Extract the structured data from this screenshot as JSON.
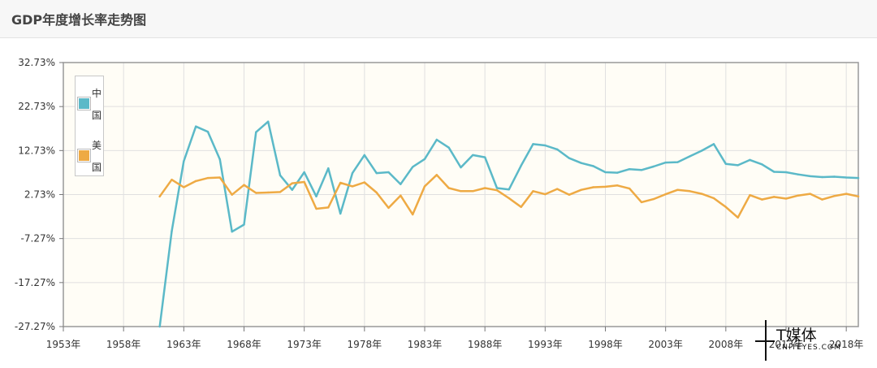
{
  "header": {
    "title": "GDP年度增长率走势图"
  },
  "watermark": {
    "brand": "T媒体",
    "sub": "CNITEYES.COM",
    "tm": "TM"
  },
  "colors": {
    "china": "#5bb9c8",
    "usa": "#eeaa44",
    "plot_bg": "#fffdf6",
    "grid": "#e0e0e0",
    "frame": "#999999"
  },
  "chart_data": {
    "type": "line",
    "title": "GDP年度增长率走势图",
    "ylim": [
      -27.27,
      32.73
    ],
    "xlim": [
      1953,
      2019
    ],
    "yticks": [
      -27.27,
      -17.27,
      -7.27,
      2.73,
      12.73,
      22.73,
      32.73
    ],
    "ytick_labels": [
      "-27.27%",
      "-17.27%",
      "-7.27%",
      "2.73%",
      "12.73%",
      "22.73%",
      "32.73%"
    ],
    "xticks": [
      1953,
      1958,
      1963,
      1968,
      1973,
      1978,
      1983,
      1988,
      1993,
      1998,
      2003,
      2008,
      2013,
      2018
    ],
    "xtick_labels": [
      "1953年",
      "1958年",
      "1963年",
      "1968年",
      "1973年",
      "1978年",
      "1983年",
      "1988年",
      "1993年",
      "1998年",
      "2003年",
      "2008年",
      "2013年",
      "2018年"
    ],
    "grid": true,
    "legend_position": "top-left",
    "series": [
      {
        "name": "中国",
        "color": "#5bb9c8",
        "x": [
          1961,
          1962,
          1963,
          1964,
          1965,
          1966,
          1967,
          1968,
          1969,
          1970,
          1971,
          1972,
          1973,
          1974,
          1975,
          1976,
          1977,
          1978,
          1979,
          1980,
          1981,
          1982,
          1983,
          1984,
          1985,
          1986,
          1987,
          1988,
          1989,
          1990,
          1991,
          1992,
          1993,
          1994,
          1995,
          1996,
          1997,
          1998,
          1999,
          2000,
          2001,
          2002,
          2003,
          2004,
          2005,
          2006,
          2007,
          2008,
          2009,
          2010,
          2011,
          2012,
          2013,
          2014,
          2015,
          2016,
          2017,
          2018,
          2019
        ],
        "values": [
          -27.27,
          -5.6,
          10.3,
          18.2,
          17.0,
          10.7,
          -5.7,
          -4.1,
          16.9,
          19.3,
          7.1,
          3.8,
          7.8,
          2.3,
          8.7,
          -1.6,
          7.6,
          11.7,
          7.6,
          7.8,
          5.1,
          9.0,
          10.8,
          15.2,
          13.4,
          8.9,
          11.7,
          11.2,
          4.2,
          3.9,
          9.3,
          14.2,
          13.9,
          13.0,
          11.0,
          9.9,
          9.2,
          7.8,
          7.7,
          8.5,
          8.3,
          9.1,
          10.0,
          10.1,
          11.4,
          12.7,
          14.2,
          9.7,
          9.4,
          10.6,
          9.6,
          7.9,
          7.8,
          7.3,
          6.9,
          6.7,
          6.8,
          6.6,
          6.5
        ]
      },
      {
        "name": "美国",
        "color": "#eeaa44",
        "x": [
          1961,
          1962,
          1963,
          1964,
          1965,
          1966,
          1967,
          1968,
          1969,
          1970,
          1971,
          1972,
          1973,
          1974,
          1975,
          1976,
          1977,
          1978,
          1979,
          1980,
          1981,
          1982,
          1983,
          1984,
          1985,
          1986,
          1987,
          1988,
          1989,
          1990,
          1991,
          1992,
          1993,
          1994,
          1995,
          1996,
          1997,
          1998,
          1999,
          2000,
          2001,
          2002,
          2003,
          2004,
          2005,
          2006,
          2007,
          2008,
          2009,
          2010,
          2011,
          2012,
          2013,
          2014,
          2015,
          2016,
          2017,
          2018,
          2019
        ],
        "values": [
          2.3,
          6.1,
          4.4,
          5.8,
          6.5,
          6.6,
          2.7,
          4.9,
          3.1,
          3.2,
          3.3,
          5.3,
          5.6,
          -0.5,
          -0.2,
          5.4,
          4.6,
          5.5,
          3.2,
          -0.3,
          2.5,
          -1.8,
          4.6,
          7.2,
          4.2,
          3.5,
          3.5,
          4.2,
          3.7,
          1.9,
          -0.1,
          3.5,
          2.8,
          4.0,
          2.7,
          3.8,
          4.4,
          4.5,
          4.8,
          4.1,
          1.0,
          1.7,
          2.8,
          3.8,
          3.5,
          2.9,
          1.9,
          -0.1,
          -2.5,
          2.6,
          1.6,
          2.2,
          1.8,
          2.5,
          2.9,
          1.6,
          2.4,
          2.9,
          2.3
        ]
      }
    ]
  }
}
